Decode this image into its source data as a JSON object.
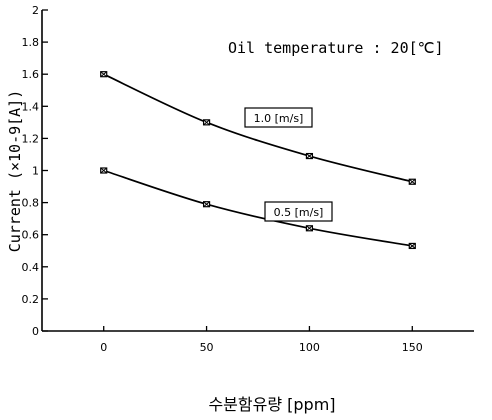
{
  "chart_data": {
    "type": "line",
    "title": "",
    "annotation": "Oil temperature : 20[℃]",
    "xlabel": "수분함유량 [ppm]",
    "ylabel": "Current (×10-9[A])",
    "x_ticks": [
      "0",
      "50",
      "100",
      "150"
    ],
    "y_ticks": [
      "0",
      "0.2",
      "0.4",
      "0.6",
      "0.8",
      "1",
      "1.2",
      "1.4",
      "1.6",
      "1.8",
      "2"
    ],
    "xlim": [
      -30,
      180
    ],
    "ylim": [
      0,
      2
    ],
    "x": [
      0,
      50,
      100,
      150
    ],
    "series": [
      {
        "name": "1.0 [m/s]",
        "values": [
          1.6,
          1.3,
          1.09,
          0.93
        ]
      },
      {
        "name": "0.5 [m/s]",
        "values": [
          1.0,
          0.79,
          0.64,
          0.53
        ]
      }
    ],
    "grid": false,
    "line_color": "#000000"
  }
}
